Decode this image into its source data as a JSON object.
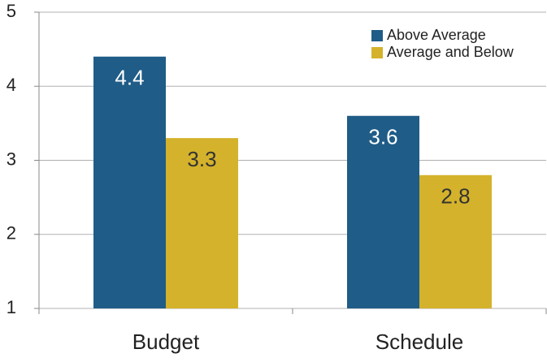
{
  "chart_data": {
    "type": "bar",
    "categories": [
      "Budget",
      "Schedule"
    ],
    "series": [
      {
        "name": "Above Average",
        "color": "#1f5c87",
        "values": [
          4.4,
          3.6
        ]
      },
      {
        "name": "Average and Below",
        "color": "#d4b22b",
        "values": [
          3.3,
          2.8
        ]
      }
    ],
    "ylim": [
      1,
      5
    ],
    "yticks": [
      1,
      2,
      3,
      4,
      5
    ],
    "grid": true,
    "legend": "upper right"
  }
}
